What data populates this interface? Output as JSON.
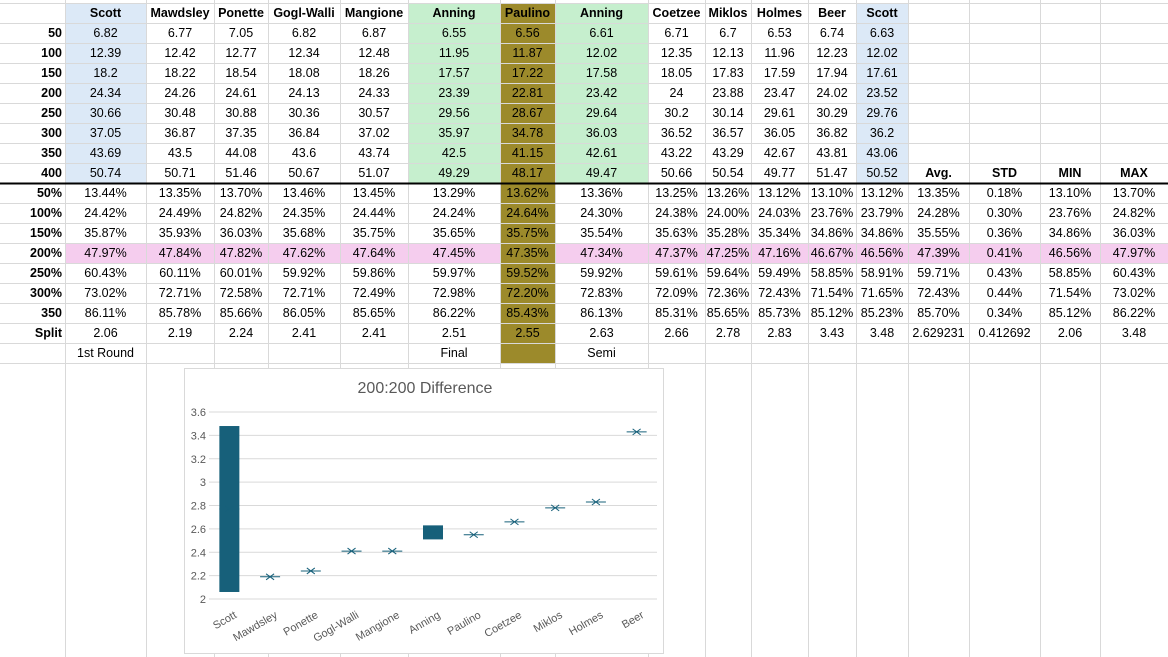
{
  "sheet": {
    "header_names": [
      "Scott",
      "Mawdsley",
      "Ponette",
      "Gogl-Walli",
      "Mangione",
      "Anning",
      "Paulino",
      "Anning",
      "Coetzee",
      "Miklos",
      "Holmes",
      "Beer",
      "Scott"
    ],
    "row_labels": [
      "50",
      "100",
      "150",
      "200",
      "250",
      "300",
      "350",
      "400"
    ],
    "times": [
      [
        "6.82",
        "6.77",
        "7.05",
        "6.82",
        "6.87",
        "6.55",
        "6.56",
        "6.61",
        "6.71",
        "6.7",
        "6.53",
        "6.74",
        "6.63"
      ],
      [
        "12.39",
        "12.42",
        "12.77",
        "12.34",
        "12.48",
        "11.95",
        "11.87",
        "12.02",
        "12.35",
        "12.13",
        "11.96",
        "12.23",
        "12.02"
      ],
      [
        "18.2",
        "18.22",
        "18.54",
        "18.08",
        "18.26",
        "17.57",
        "17.22",
        "17.58",
        "18.05",
        "17.83",
        "17.59",
        "17.94",
        "17.61"
      ],
      [
        "24.34",
        "24.26",
        "24.61",
        "24.13",
        "24.33",
        "23.39",
        "22.81",
        "23.42",
        "24",
        "23.88",
        "23.47",
        "24.02",
        "23.52"
      ],
      [
        "30.66",
        "30.48",
        "30.88",
        "30.36",
        "30.57",
        "29.56",
        "28.67",
        "29.64",
        "30.2",
        "30.14",
        "29.61",
        "30.29",
        "29.76"
      ],
      [
        "37.05",
        "36.87",
        "37.35",
        "36.84",
        "37.02",
        "35.97",
        "34.78",
        "36.03",
        "36.52",
        "36.57",
        "36.05",
        "36.82",
        "36.2"
      ],
      [
        "43.69",
        "43.5",
        "44.08",
        "43.6",
        "43.74",
        "42.5",
        "41.15",
        "42.61",
        "43.22",
        "43.29",
        "42.67",
        "43.81",
        "43.06"
      ],
      [
        "50.74",
        "50.71",
        "51.46",
        "50.67",
        "51.07",
        "49.29",
        "48.17",
        "49.47",
        "50.66",
        "50.54",
        "49.77",
        "51.47",
        "50.52"
      ]
    ],
    "stats_headers": [
      "Avg.",
      "STD",
      "MIN",
      "MAX"
    ],
    "pct_labels": [
      "50%",
      "100%",
      "150%",
      "200%",
      "250%",
      "300%",
      "350",
      "Split"
    ],
    "pct_rows": [
      [
        "13.44%",
        "13.35%",
        "13.70%",
        "13.46%",
        "13.45%",
        "13.29%",
        "13.62%",
        "13.36%",
        "13.25%",
        "13.26%",
        "13.12%",
        "13.10%",
        "13.12%",
        "13.35%",
        "0.18%",
        "13.10%",
        "13.70%"
      ],
      [
        "24.42%",
        "24.49%",
        "24.82%",
        "24.35%",
        "24.44%",
        "24.24%",
        "24.64%",
        "24.30%",
        "24.38%",
        "24.00%",
        "24.03%",
        "23.76%",
        "23.79%",
        "24.28%",
        "0.30%",
        "23.76%",
        "24.82%"
      ],
      [
        "35.87%",
        "35.93%",
        "36.03%",
        "35.68%",
        "35.75%",
        "35.65%",
        "35.75%",
        "35.54%",
        "35.63%",
        "35.28%",
        "35.34%",
        "34.86%",
        "34.86%",
        "35.55%",
        "0.36%",
        "34.86%",
        "36.03%"
      ],
      [
        "47.97%",
        "47.84%",
        "47.82%",
        "47.62%",
        "47.64%",
        "47.45%",
        "47.35%",
        "47.34%",
        "47.37%",
        "47.25%",
        "47.16%",
        "46.67%",
        "46.56%",
        "47.39%",
        "0.41%",
        "46.56%",
        "47.97%"
      ],
      [
        "60.43%",
        "60.11%",
        "60.01%",
        "59.92%",
        "59.86%",
        "59.97%",
        "59.52%",
        "59.92%",
        "59.61%",
        "59.64%",
        "59.49%",
        "58.85%",
        "58.91%",
        "59.71%",
        "0.43%",
        "58.85%",
        "60.43%"
      ],
      [
        "73.02%",
        "72.71%",
        "72.58%",
        "72.71%",
        "72.49%",
        "72.98%",
        "72.20%",
        "72.83%",
        "72.09%",
        "72.36%",
        "72.43%",
        "71.54%",
        "71.65%",
        "72.43%",
        "0.44%",
        "71.54%",
        "73.02%"
      ],
      [
        "86.11%",
        "85.78%",
        "85.66%",
        "86.05%",
        "85.65%",
        "86.22%",
        "85.43%",
        "86.13%",
        "85.31%",
        "85.65%",
        "85.73%",
        "85.12%",
        "85.23%",
        "85.70%",
        "0.34%",
        "85.12%",
        "86.22%"
      ],
      [
        "2.06",
        "2.19",
        "2.24",
        "2.41",
        "2.41",
        "2.51",
        "2.55",
        "2.63",
        "2.66",
        "2.78",
        "2.83",
        "3.43",
        "3.48",
        "2.629231",
        "0.412692",
        "2.06",
        "3.48"
      ]
    ],
    "round_labels": [
      "1st Round",
      "Final",
      "Semi"
    ],
    "colors": {
      "blue": "#dce9f7",
      "green": "#c6efce",
      "olive": "#9c8a2b",
      "pink": "#f5cdee",
      "grid": "#d9d9d9",
      "bar": "#17607a"
    }
  },
  "chart_data": {
    "type": "box",
    "title": "200:200 Difference",
    "xlabel": "",
    "ylabel": "",
    "ylim": [
      2,
      3.6
    ],
    "yticks": [
      "2",
      "2.2",
      "2.4",
      "2.6",
      "2.8",
      "3",
      "3.2",
      "3.4",
      "3.6"
    ],
    "categories": [
      "Scott",
      "Mawdsley",
      "Ponette",
      "Gogl-Walli",
      "Mangione",
      "Anning",
      "Paulino",
      "Coetzee",
      "Miklos",
      "Holmes",
      "Beer"
    ],
    "means": [
      2.77,
      2.19,
      2.24,
      2.41,
      2.41,
      2.57,
      2.55,
      2.66,
      2.78,
      2.83,
      3.43
    ],
    "box_low": [
      2.06,
      null,
      null,
      null,
      null,
      2.51,
      null,
      null,
      null,
      null,
      null
    ],
    "box_high": [
      3.48,
      null,
      null,
      null,
      null,
      2.63,
      null,
      null,
      null,
      null,
      null
    ]
  }
}
